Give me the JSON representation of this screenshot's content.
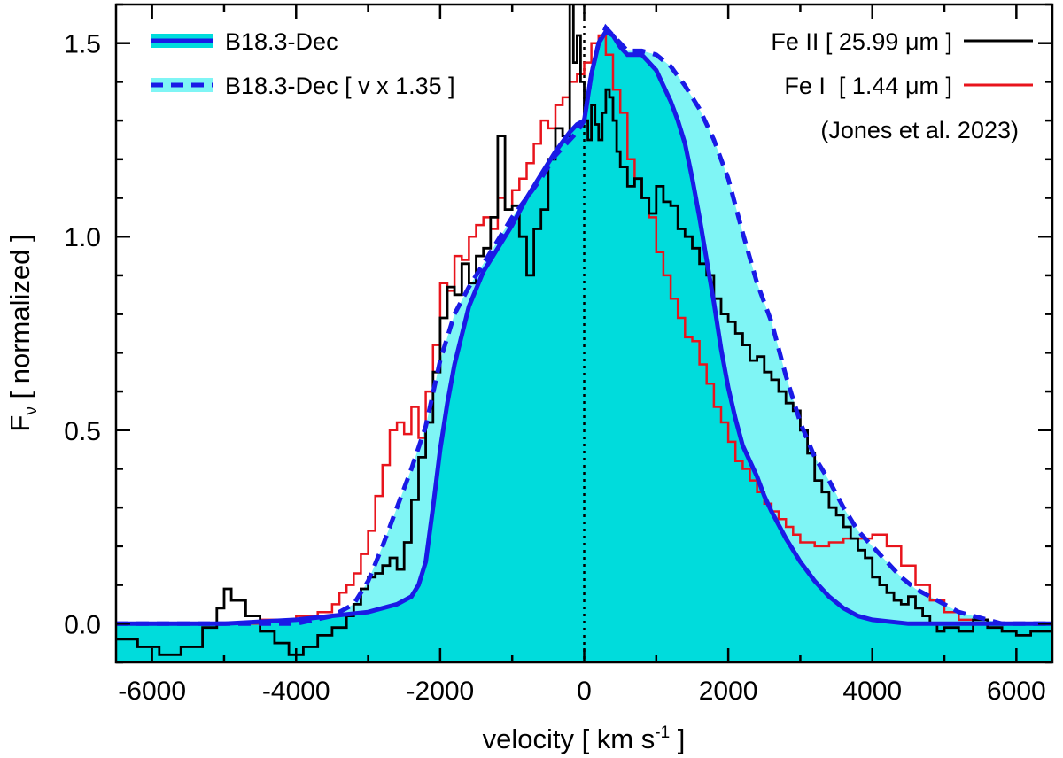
{
  "chart_data": {
    "type": "line",
    "xlabel": "velocity [ km s",
    "xlabel_sup": "-1",
    "xlabel_end": " ]",
    "ylabel": "F",
    "ylabel_sub": "ν",
    "ylabel_end": " [ normalized ]",
    "xlim": [
      -6500,
      6500
    ],
    "ylim": [
      -0.1,
      1.6
    ],
    "x_ticks": [
      -6000,
      -4000,
      -2000,
      0,
      2000,
      4000,
      6000
    ],
    "y_ticks": [
      0.0,
      0.5,
      1.0,
      1.5
    ],
    "x_tick_labels": [
      "-6000",
      "-4000",
      "-2000",
      "0",
      "2000",
      "4000",
      "6000"
    ],
    "y_tick_labels": [
      "0.0",
      "0.5",
      "1.0",
      "1.5"
    ],
    "reference_line_x": 0,
    "legend_left": [
      {
        "label": "B18.3-Dec",
        "style": "solid"
      },
      {
        "label": "B18.3-Dec [ v x 1.35 ]",
        "style": "dashed"
      }
    ],
    "legend_right": [
      {
        "label": "Fe II [ 25.99 μm ]",
        "color": "#000000"
      },
      {
        "label": "Fe I  [ 1.44 μm ]",
        "color": "#e8141c"
      }
    ],
    "annotation": "(Jones et al. 2023)",
    "colors": {
      "model": "#1a1ae6",
      "model_fill": "#00dcdc",
      "scaled_fill": "#7ff5f5",
      "fe2": "#000000",
      "fe1": "#e8141c"
    },
    "series": [
      {
        "name": "B18.3-Dec",
        "x": [
          -6500,
          -5000,
          -4000,
          -3000,
          -2600,
          -2400,
          -2300,
          -2200,
          -2100,
          -2000,
          -1900,
          -1800,
          -1600,
          -1400,
          -1200,
          -1000,
          -800,
          -600,
          -400,
          -200,
          -100,
          0,
          100,
          200,
          300,
          400,
          500,
          600,
          700,
          800,
          900,
          1000,
          1100,
          1200,
          1300,
          1400,
          1500,
          1600,
          1700,
          1800,
          1900,
          2000,
          2100,
          2200,
          2300,
          2400,
          2500,
          2600,
          2800,
          3000,
          3200,
          3400,
          3600,
          3800,
          4000,
          4500,
          5000,
          6500
        ],
        "values": [
          0.0,
          0.0,
          0.01,
          0.03,
          0.05,
          0.07,
          0.1,
          0.16,
          0.3,
          0.45,
          0.57,
          0.67,
          0.82,
          0.91,
          0.97,
          1.03,
          1.1,
          1.16,
          1.22,
          1.27,
          1.29,
          1.3,
          1.42,
          1.5,
          1.53,
          1.52,
          1.49,
          1.47,
          1.47,
          1.47,
          1.45,
          1.43,
          1.39,
          1.35,
          1.3,
          1.24,
          1.15,
          1.05,
          0.94,
          0.83,
          0.71,
          0.61,
          0.53,
          0.46,
          0.42,
          0.38,
          0.33,
          0.29,
          0.22,
          0.16,
          0.11,
          0.07,
          0.04,
          0.02,
          0.01,
          0.0,
          0.0,
          0.0
        ]
      },
      {
        "name": "B18.3-Dec [ v x 1.35 ]",
        "x": [
          -6500,
          -5000,
          -4000,
          -3500,
          -3200,
          -3000,
          -2800,
          -2600,
          -2400,
          -2200,
          -2000,
          -1800,
          -1600,
          -1400,
          -1200,
          -1000,
          -800,
          -600,
          -400,
          -200,
          -100,
          0,
          100,
          200,
          300,
          400,
          600,
          800,
          1000,
          1200,
          1400,
          1600,
          1800,
          2000,
          2200,
          2400,
          2600,
          2800,
          3000,
          3200,
          3400,
          3600,
          3800,
          4000,
          4200,
          4400,
          4600,
          4800,
          5000,
          5200,
          5400,
          5800,
          6500
        ],
        "values": [
          0.0,
          0.0,
          0.0,
          0.02,
          0.05,
          0.11,
          0.2,
          0.3,
          0.4,
          0.51,
          0.68,
          0.8,
          0.87,
          0.93,
          0.99,
          1.05,
          1.1,
          1.15,
          1.21,
          1.25,
          1.27,
          1.3,
          1.42,
          1.5,
          1.54,
          1.52,
          1.48,
          1.48,
          1.47,
          1.44,
          1.39,
          1.33,
          1.25,
          1.15,
          1.01,
          0.88,
          0.78,
          0.64,
          0.52,
          0.43,
          0.37,
          0.3,
          0.24,
          0.2,
          0.16,
          0.12,
          0.09,
          0.07,
          0.05,
          0.03,
          0.02,
          0.0,
          0.0
        ]
      },
      {
        "name": "Fe II [ 25.99 μm ]",
        "x": [
          -6500,
          -6200,
          -5900,
          -5600,
          -5300,
          -5100,
          -5000,
          -4900,
          -4700,
          -4500,
          -4300,
          -4100,
          -3900,
          -3700,
          -3500,
          -3300,
          -3200,
          -3100,
          -3000,
          -2900,
          -2800,
          -2700,
          -2600,
          -2500,
          -2400,
          -2300,
          -2200,
          -2100,
          -2000,
          -1900,
          -1800,
          -1700,
          -1600,
          -1500,
          -1400,
          -1300,
          -1200,
          -1100,
          -1000,
          -900,
          -800,
          -700,
          -600,
          -500,
          -400,
          -300,
          -200,
          -150,
          -100,
          -50,
          0,
          50,
          100,
          150,
          200,
          250,
          300,
          350,
          400,
          450,
          500,
          600,
          700,
          800,
          900,
          1000,
          1100,
          1200,
          1300,
          1400,
          1500,
          1600,
          1700,
          1800,
          1900,
          2000,
          2100,
          2200,
          2300,
          2400,
          2500,
          2600,
          2700,
          2800,
          2900,
          3000,
          3100,
          3200,
          3300,
          3400,
          3500,
          3600,
          3700,
          3800,
          3900,
          4000,
          4100,
          4200,
          4300,
          4400,
          4500,
          4600,
          4700,
          4800,
          4900,
          5000,
          5200,
          5400,
          5600,
          5800,
          6000,
          6200,
          6500
        ],
        "values": [
          -0.04,
          -0.06,
          -0.08,
          -0.06,
          -0.01,
          0.04,
          0.09,
          0.06,
          0.02,
          -0.02,
          -0.05,
          -0.08,
          -0.06,
          -0.03,
          -0.01,
          0.02,
          0.05,
          0.09,
          0.12,
          0.13,
          0.15,
          0.17,
          0.14,
          0.21,
          0.32,
          0.43,
          0.52,
          0.65,
          0.79,
          0.87,
          0.85,
          0.93,
          0.88,
          0.95,
          0.97,
          1.05,
          1.26,
          1.07,
          1.08,
          1.0,
          0.9,
          1.02,
          1.07,
          1.2,
          1.28,
          1.26,
          1.62,
          1.45,
          1.52,
          1.4,
          1.3,
          1.25,
          1.34,
          1.29,
          1.25,
          1.32,
          1.38,
          1.36,
          1.3,
          1.22,
          1.18,
          1.13,
          1.15,
          1.1,
          1.06,
          1.13,
          1.09,
          1.08,
          1.02,
          1.0,
          0.97,
          0.93,
          0.9,
          0.84,
          0.8,
          0.78,
          0.75,
          0.72,
          0.68,
          0.69,
          0.65,
          0.63,
          0.6,
          0.57,
          0.55,
          0.5,
          0.44,
          0.37,
          0.34,
          0.3,
          0.28,
          0.25,
          0.22,
          0.19,
          0.17,
          0.12,
          0.1,
          0.08,
          0.06,
          0.05,
          0.07,
          0.04,
          0.02,
          0.0,
          -0.02,
          -0.01,
          -0.02,
          0.01,
          -0.01,
          -0.02,
          -0.03,
          -0.02,
          -0.02
        ]
      },
      {
        "name": "Fe I  [ 1.44 μm ]",
        "x": [
          -6500,
          -6000,
          -5500,
          -5000,
          -4500,
          -4000,
          -3700,
          -3500,
          -3400,
          -3300,
          -3200,
          -3100,
          -3000,
          -2900,
          -2800,
          -2700,
          -2600,
          -2500,
          -2400,
          -2300,
          -2200,
          -2100,
          -2000,
          -1900,
          -1800,
          -1700,
          -1600,
          -1500,
          -1400,
          -1300,
          -1200,
          -1100,
          -1000,
          -900,
          -800,
          -700,
          -600,
          -500,
          -400,
          -300,
          -200,
          -100,
          0,
          100,
          200,
          300,
          400,
          500,
          600,
          700,
          800,
          900,
          1000,
          1100,
          1200,
          1300,
          1400,
          1500,
          1600,
          1700,
          1800,
          1900,
          2000,
          2100,
          2200,
          2300,
          2400,
          2500,
          2600,
          2700,
          2800,
          2900,
          3000,
          3200,
          3400,
          3600,
          3800,
          4000,
          4200,
          4400,
          4600,
          4800,
          5000,
          5200,
          5400,
          5800,
          6500
        ],
        "values": [
          0.0,
          0.0,
          0.0,
          0.0,
          0.01,
          0.02,
          0.03,
          0.05,
          0.08,
          0.1,
          0.13,
          0.18,
          0.24,
          0.33,
          0.41,
          0.5,
          0.52,
          0.49,
          0.56,
          0.48,
          0.6,
          0.72,
          0.88,
          0.86,
          0.95,
          0.94,
          1.0,
          1.03,
          1.05,
          1.02,
          1.1,
          1.07,
          1.12,
          1.15,
          1.19,
          1.24,
          1.3,
          1.28,
          1.34,
          1.36,
          1.4,
          1.42,
          1.45,
          1.5,
          1.52,
          1.47,
          1.38,
          1.32,
          1.2,
          1.15,
          1.1,
          1.05,
          0.96,
          0.9,
          0.84,
          0.79,
          0.74,
          0.73,
          0.67,
          0.62,
          0.56,
          0.52,
          0.47,
          0.42,
          0.4,
          0.37,
          0.34,
          0.31,
          0.29,
          0.27,
          0.25,
          0.23,
          0.21,
          0.2,
          0.21,
          0.22,
          0.22,
          0.23,
          0.2,
          0.15,
          0.1,
          0.06,
          0.03,
          0.01,
          0.0,
          0.0,
          0.0
        ]
      }
    ]
  }
}
